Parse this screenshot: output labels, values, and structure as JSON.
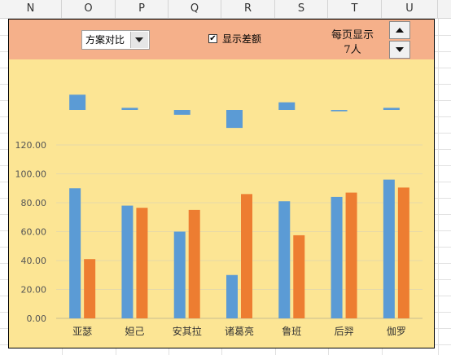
{
  "sheet": {
    "columns": [
      "N",
      "O",
      "P",
      "Q",
      "R",
      "S",
      "T",
      "U"
    ]
  },
  "controls": {
    "combo_value": "方案对比",
    "checkbox_checked": true,
    "checkbox_label": "显示差额",
    "per_page_label": "每页显示",
    "per_page_value": "7人"
  },
  "colors": {
    "series_blue": "#5b9bd5",
    "series_orange": "#ed7d31",
    "panel_bg": "#fce594",
    "toolbar_bg": "#f5b08a"
  },
  "chart_data": {
    "type": "bar",
    "categories": [
      "亚瑟",
      "妲己",
      "安其拉",
      "诸葛亮",
      "鲁班",
      "后羿",
      "伽罗"
    ],
    "series": [
      {
        "values": [
          90,
          78,
          60,
          30,
          81,
          84,
          96
        ]
      },
      {
        "values": [
          41,
          76.5,
          75,
          86,
          57.5,
          87,
          90.5
        ]
      }
    ],
    "difference": [
      11,
      1.5,
      -3.5,
      -13,
      5.5,
      -1,
      1.5
    ],
    "yticks": [
      "0.00",
      "20.00",
      "40.00",
      "60.00",
      "80.00",
      "100.00",
      "120.00"
    ],
    "ylim": [
      0,
      120
    ],
    "xlabel": "",
    "ylabel": "",
    "grid": true,
    "legend": "none"
  }
}
